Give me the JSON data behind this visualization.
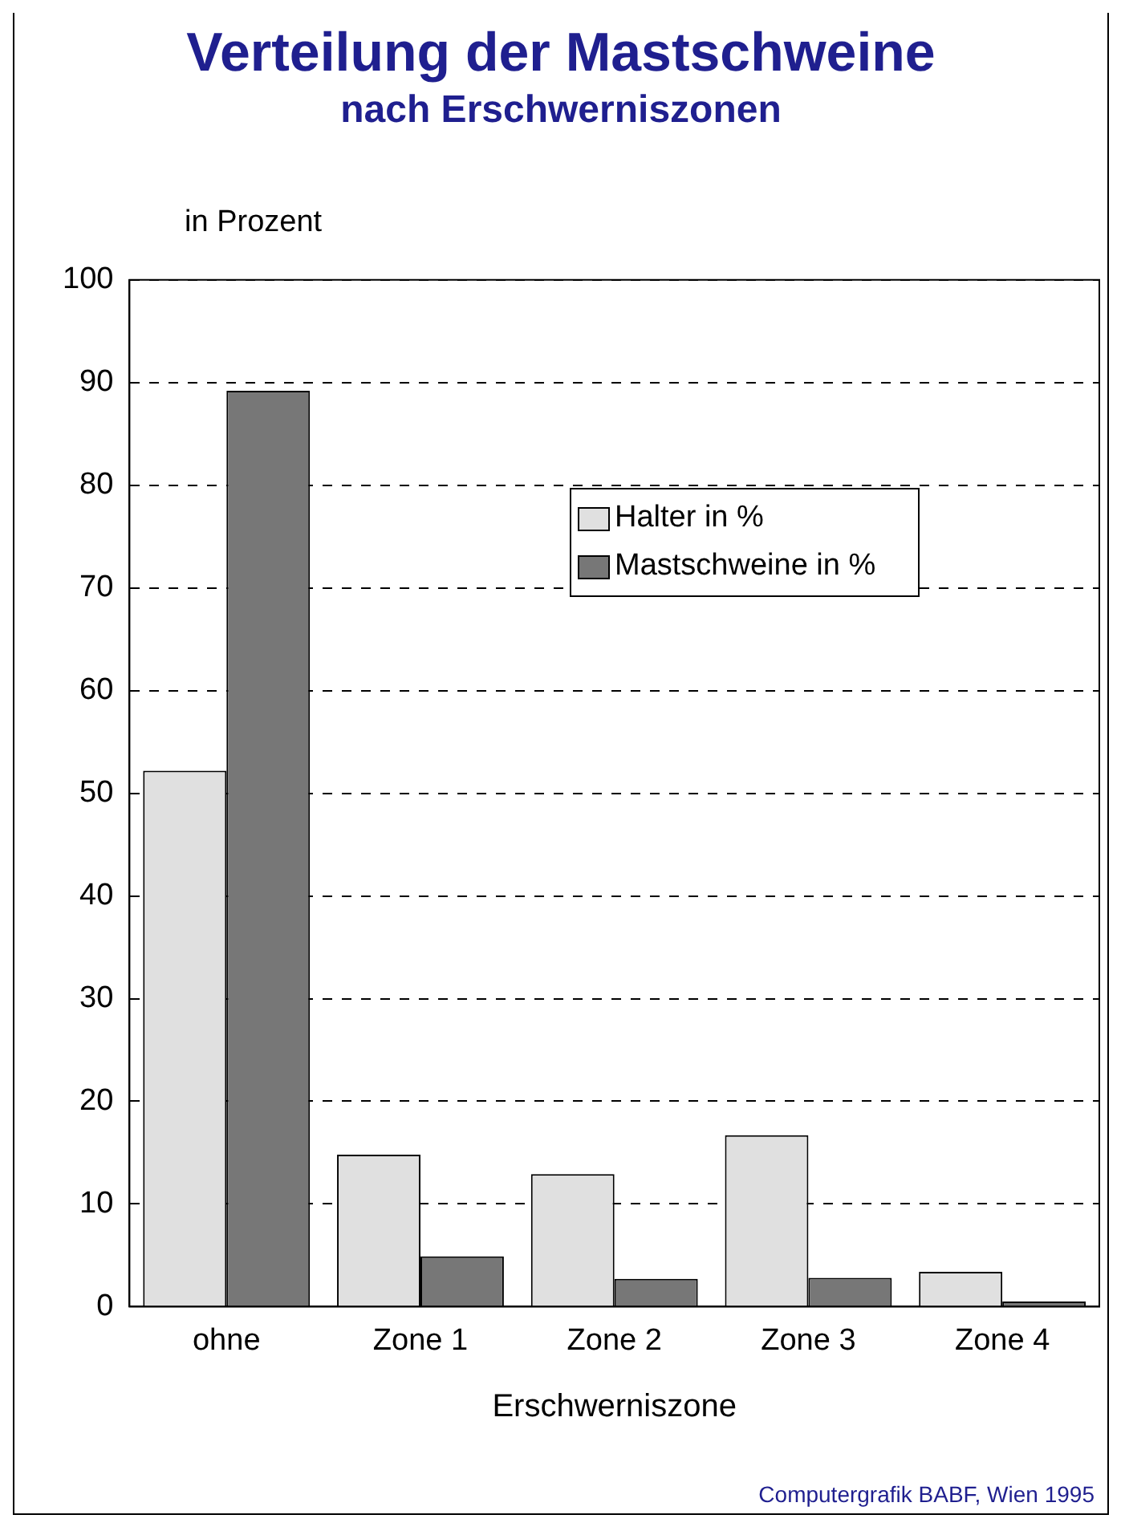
{
  "chart_data": {
    "type": "bar",
    "title": "Verteilung der Mastschweine",
    "subtitle": "nach Erschwerniszonen",
    "ylabel": "in Prozent",
    "xlabel": "Erschwerniszone",
    "categories": [
      "ohne",
      "Zone 1",
      "Zone 2",
      "Zone 3",
      "Zone 4"
    ],
    "series": [
      {
        "name": "Halter in %",
        "color": "#e0e0e0",
        "values": [
          52.2,
          14.8,
          12.9,
          16.7,
          3.4
        ]
      },
      {
        "name": "Mastschweine in %",
        "color": "#777777",
        "values": [
          89.2,
          4.9,
          2.7,
          2.8,
          0.5
        ]
      }
    ],
    "ylim": [
      0,
      100
    ],
    "yticks": [
      0,
      10,
      20,
      30,
      40,
      50,
      60,
      70,
      80,
      90,
      100
    ],
    "grid": "y",
    "legend": "top right",
    "annotations": [
      "Computergrafik BABF, Wien 1995"
    ]
  }
}
